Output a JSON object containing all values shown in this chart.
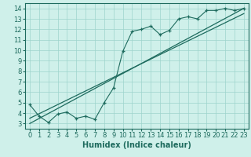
{
  "xlabel": "Humidex (Indice chaleur)",
  "xlim": [
    -0.5,
    23.5
  ],
  "ylim": [
    2.5,
    14.5
  ],
  "xticks": [
    0,
    1,
    2,
    3,
    4,
    5,
    6,
    7,
    8,
    9,
    10,
    11,
    12,
    13,
    14,
    15,
    16,
    17,
    18,
    19,
    20,
    21,
    22,
    23
  ],
  "yticks": [
    3,
    4,
    5,
    6,
    7,
    8,
    9,
    10,
    11,
    12,
    13,
    14
  ],
  "bg_color": "#cff0ea",
  "grid_color": "#9dd4cc",
  "line_color": "#1e6b5e",
  "scatter_x": [
    0,
    1,
    2,
    3,
    4,
    5,
    6,
    7,
    8,
    9,
    10,
    11,
    12,
    13,
    14,
    15,
    16,
    17,
    18,
    19,
    20,
    21,
    22,
    23
  ],
  "scatter_y": [
    4.8,
    3.7,
    3.1,
    3.9,
    4.1,
    3.5,
    3.7,
    3.4,
    5.0,
    6.4,
    9.9,
    11.8,
    12.0,
    12.3,
    11.5,
    11.9,
    13.0,
    13.2,
    13.0,
    13.8,
    13.8,
    14.0,
    13.8,
    14.0
  ],
  "line1_x": [
    0,
    23
  ],
  "line1_y": [
    3.0,
    14.0
  ],
  "line2_x": [
    0,
    23
  ],
  "line2_y": [
    3.5,
    13.5
  ],
  "xlabel_fontsize": 7,
  "tick_fontsize": 6
}
